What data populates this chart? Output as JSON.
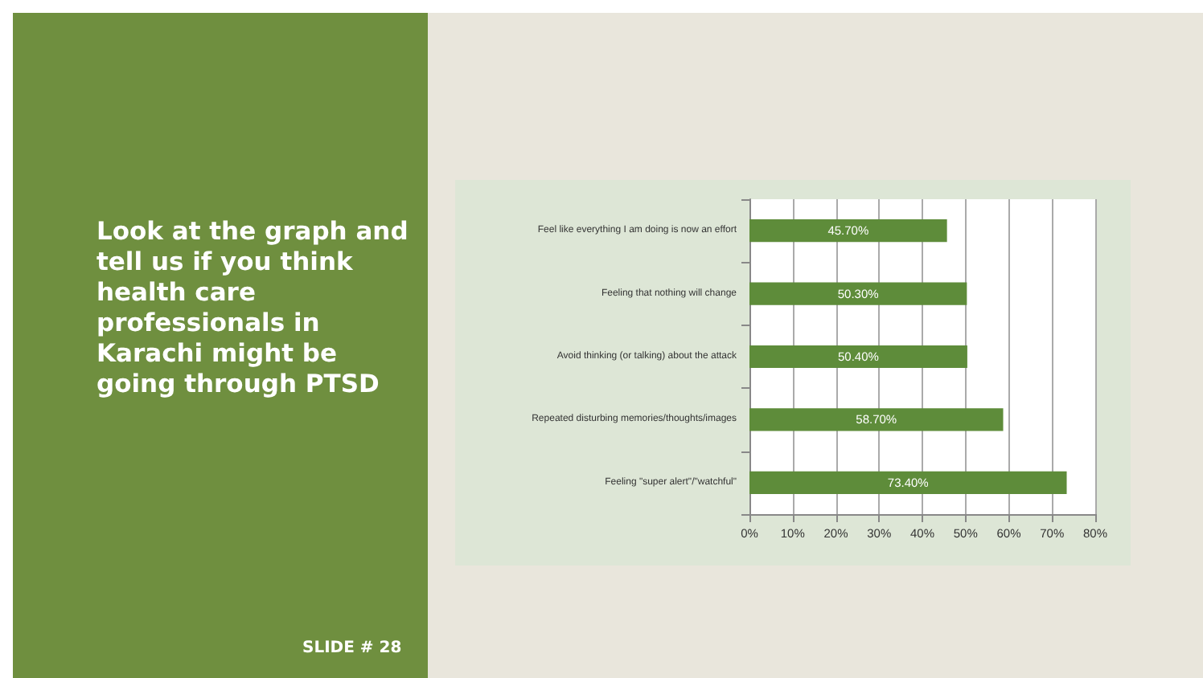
{
  "chart_data": {
    "type": "bar",
    "orientation": "horizontal",
    "title": "Look at the graph and tell us if you think health care professionals in Karachi might be going through PTSD",
    "annotations": [
      "SLIDE # 28"
    ],
    "categories": [
      "Feel like everything I am doing is now an effort",
      "Feeling that nothing will change",
      "Avoid thinking (or talking) about the attack",
      "Repeated disturbing memories/thoughts/images",
      "Feeling \"super alert\"/\"watchful\""
    ],
    "values": [
      45.7,
      50.3,
      50.4,
      58.7,
      73.4
    ],
    "value_labels": [
      "45.70%",
      "50.30%",
      "50.40%",
      "58.70%",
      "73.40%"
    ],
    "color": "#5e8c3a",
    "xlim": [
      0,
      80
    ],
    "xticks": [
      {
        "value": 0,
        "label": "0%"
      },
      {
        "value": 10,
        "label": "10%"
      },
      {
        "value": 20,
        "label": "20%"
      },
      {
        "value": 30,
        "label": "30%"
      },
      {
        "value": 40,
        "label": "40%"
      },
      {
        "value": 50,
        "label": "50%"
      },
      {
        "value": 60,
        "label": "60%"
      },
      {
        "value": 70,
        "label": "70%"
      },
      {
        "value": 80,
        "label": "80%"
      }
    ],
    "grid": "x"
  }
}
